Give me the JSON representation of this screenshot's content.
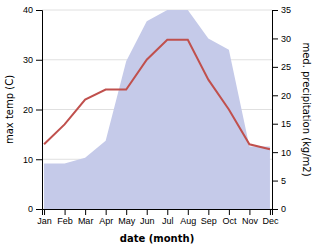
{
  "chart_data": {
    "type": "line",
    "categories": [
      "Jan",
      "Feb",
      "Mar",
      "Apr",
      "May",
      "Jun",
      "Jul",
      "Aug",
      "Sep",
      "Oct",
      "Nov",
      "Dec"
    ],
    "series": [
      {
        "type": "area",
        "axis": "y2",
        "color": "#c5cae9",
        "values": [
          8,
          8,
          9,
          12,
          26,
          33,
          35,
          35,
          30,
          28,
          11,
          11
        ]
      },
      {
        "type": "line",
        "color": "#c0504d",
        "values": [
          13,
          17,
          22,
          24,
          24,
          30,
          34,
          34,
          26,
          20,
          13,
          12
        ]
      }
    ],
    "xlabel": "date (month)",
    "ylabel": "max temp (C)",
    "y2label": "med. precipitation (kg/m2)",
    "ylim": [
      0,
      40
    ],
    "yticks": [
      0,
      10,
      20,
      30,
      40
    ],
    "y2lim": [
      0,
      35
    ],
    "y2ticks": [
      0,
      5,
      10,
      15,
      20,
      25,
      30,
      35
    ],
    "grid": true
  }
}
